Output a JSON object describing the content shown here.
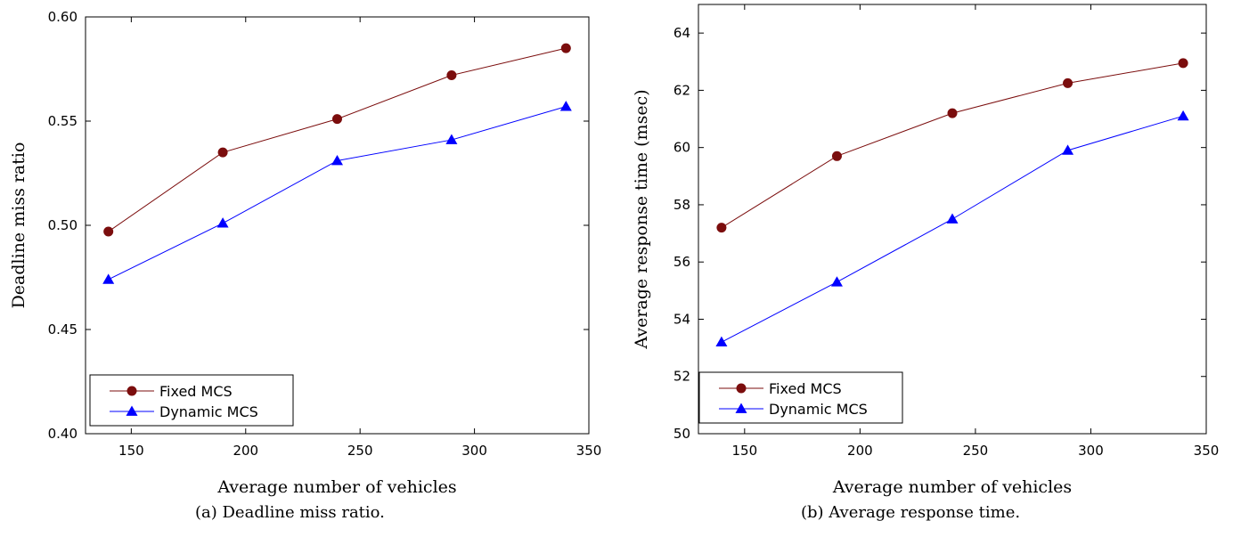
{
  "chart_data": [
    {
      "type": "line",
      "caption": "(a) Deadline miss ratio.",
      "xlabel": "Average number of vehicles",
      "ylabel": "Deadline miss ratio",
      "xlim": [
        130,
        350
      ],
      "ylim": [
        0.4,
        0.6
      ],
      "xticks": [
        150,
        200,
        250,
        300,
        350
      ],
      "yticks": [
        0.4,
        0.45,
        0.5,
        0.55,
        0.6
      ],
      "ytick_labels": [
        "0.40",
        "0.45",
        "0.50",
        "0.55",
        "0.60"
      ],
      "x": [
        140,
        190,
        240,
        290,
        340
      ],
      "series": [
        {
          "name": "Fixed MCS",
          "color": "#7b0d0d",
          "marker": "circle",
          "values": [
            0.497,
            0.535,
            0.551,
            0.572,
            0.585
          ]
        },
        {
          "name": "Dynamic MCS",
          "color": "#0000ff",
          "marker": "triangle",
          "values": [
            0.474,
            0.501,
            0.531,
            0.541,
            0.557
          ]
        }
      ],
      "legend": "bottom-left",
      "grid": false
    },
    {
      "type": "line",
      "caption": "(b) Average response time.",
      "xlabel": "Average number of vehicles",
      "ylabel": "Average response time (msec)",
      "xlim": [
        130,
        350
      ],
      "ylim": [
        50,
        65
      ],
      "xticks": [
        150,
        200,
        250,
        300,
        350
      ],
      "yticks": [
        50,
        52,
        54,
        56,
        58,
        60,
        62,
        64
      ],
      "ytick_labels": [
        "50",
        "52",
        "54",
        "56",
        "58",
        "60",
        "62",
        "64"
      ],
      "x": [
        140,
        190,
        240,
        290,
        340
      ],
      "series": [
        {
          "name": "Fixed MCS",
          "color": "#7b0d0d",
          "marker": "circle",
          "values": [
            57.2,
            59.7,
            61.2,
            62.25,
            62.95
          ]
        },
        {
          "name": "Dynamic MCS",
          "color": "#0000ff",
          "marker": "triangle",
          "values": [
            53.2,
            55.3,
            57.5,
            59.9,
            61.1
          ]
        }
      ],
      "legend": "bottom-left",
      "grid": false
    }
  ]
}
